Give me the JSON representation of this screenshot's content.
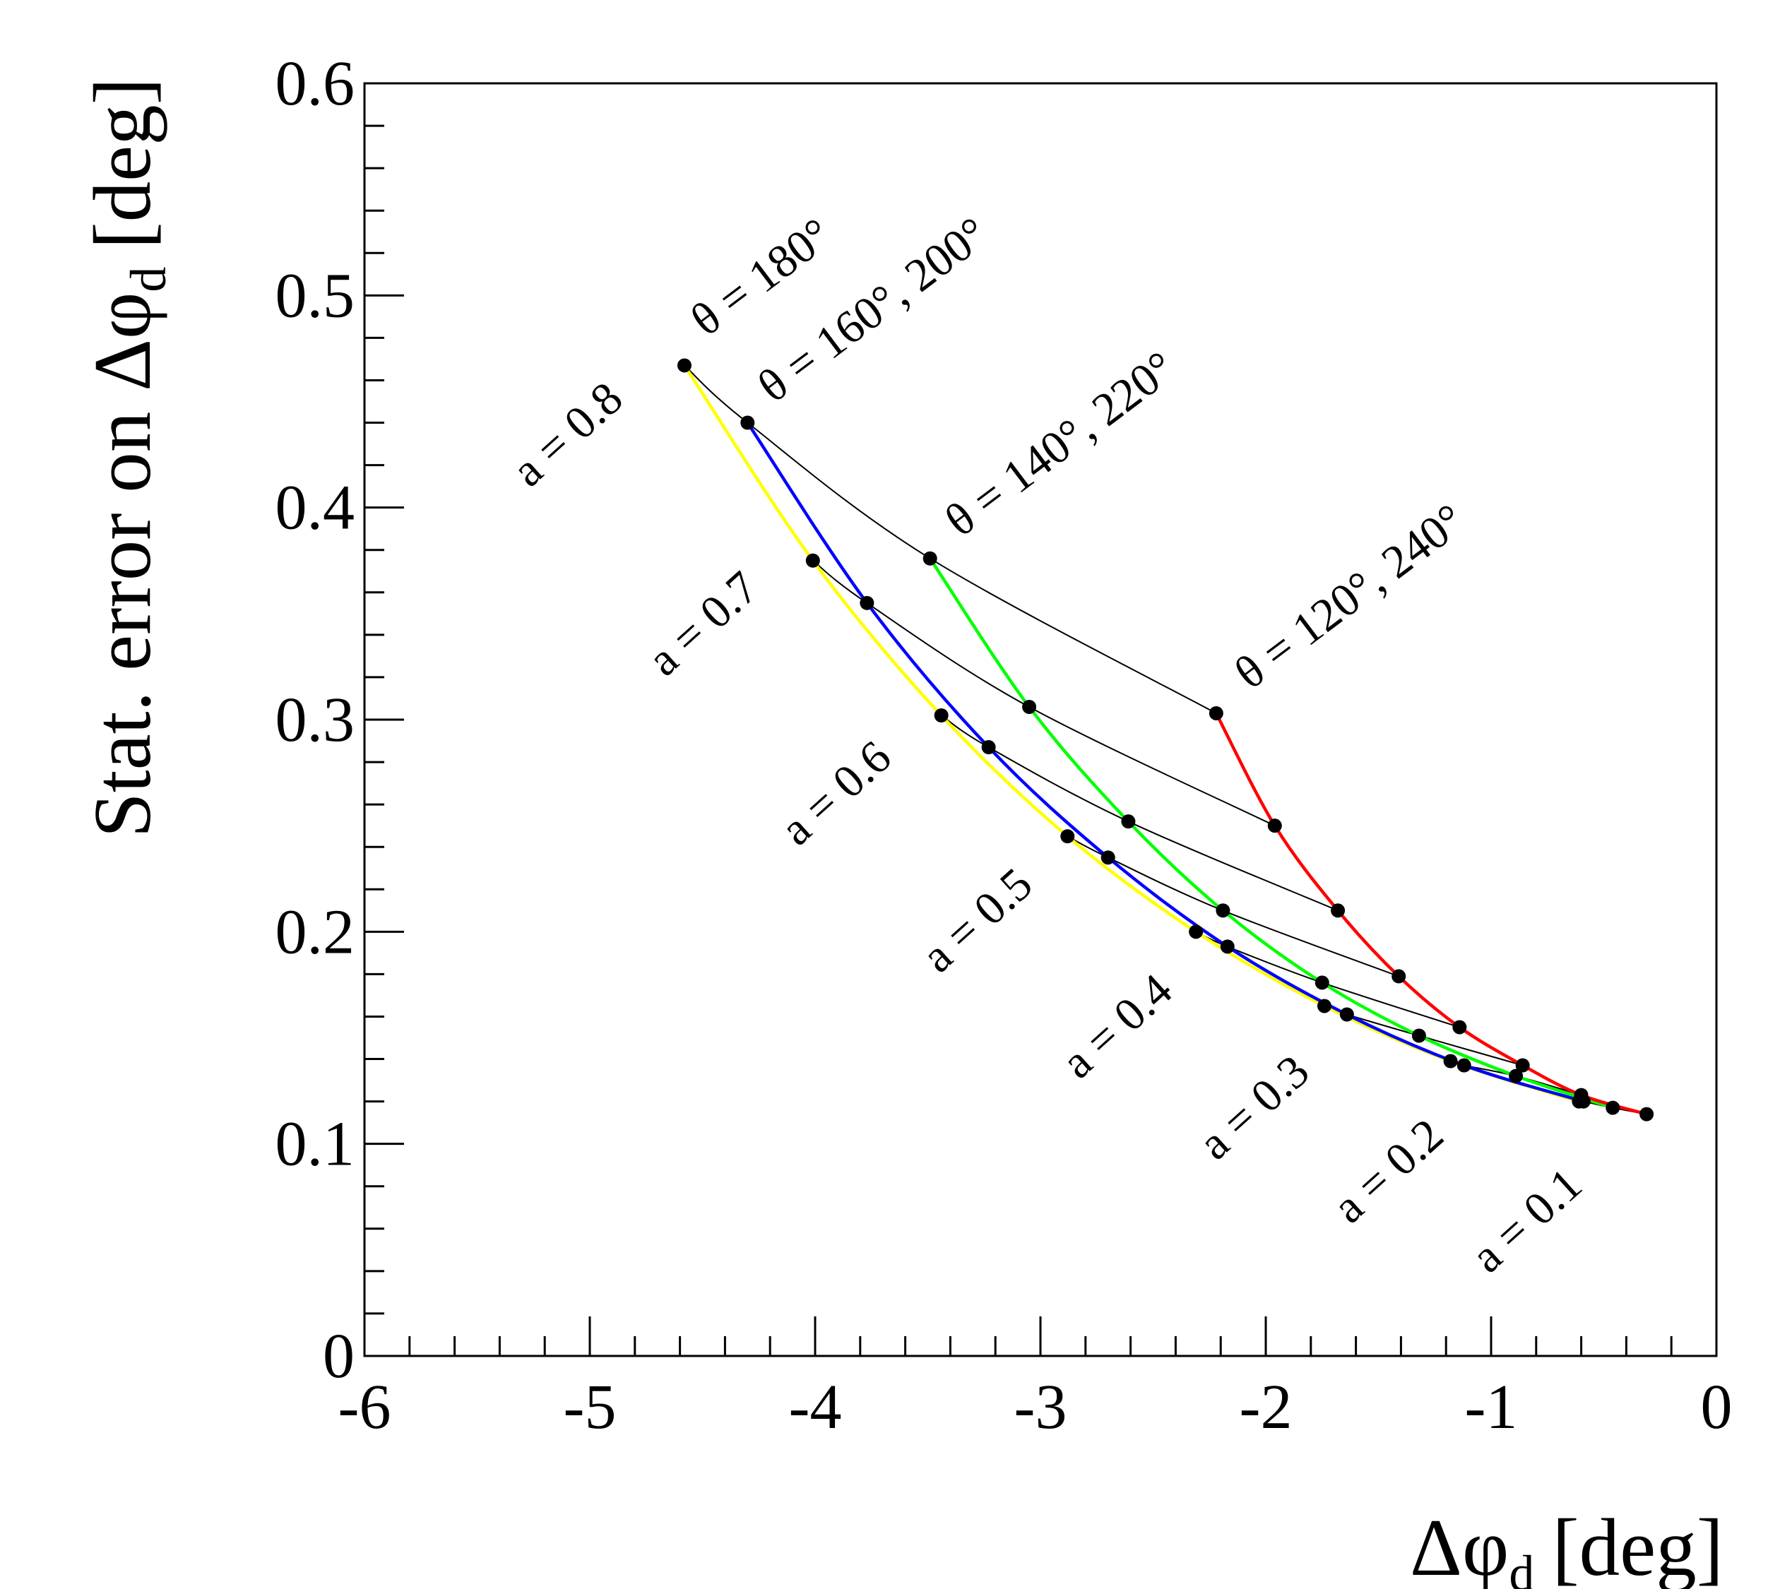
{
  "chart_data": {
    "type": "line",
    "xlabel": "Δφd [deg]",
    "xlabel_main": "Δφ",
    "xlabel_sub": "d",
    "xlabel_unit": "[deg]",
    "ylabel": "Stat. error on Δφd [deg]",
    "ylabel_main": "Stat. error on Δφ",
    "ylabel_sub": "d",
    "ylabel_unit": "[deg]",
    "xlim": [
      -6,
      0
    ],
    "ylim": [
      0,
      0.6
    ],
    "x_major_ticks": [
      -6,
      -5,
      -4,
      -3,
      -2,
      -1,
      0
    ],
    "x_tick_labels": [
      "-6",
      "-5",
      "-4",
      "-3",
      "-2",
      "-1",
      "0"
    ],
    "x_minor_step": 0.2,
    "y_major_ticks": [
      0,
      0.1,
      0.2,
      0.3,
      0.4,
      0.5,
      0.6
    ],
    "y_tick_labels": [
      "0",
      "0.1",
      "0.2",
      "0.3",
      "0.4",
      "0.5",
      "0.6"
    ],
    "y_minor_step": 0.02,
    "grid": false,
    "series": [
      {
        "name": "θ = 180°",
        "color": "#ffff00",
        "points": [
          [
            -4.58,
            0.467
          ],
          [
            -4.01,
            0.375
          ],
          [
            -3.44,
            0.302
          ],
          [
            -2.88,
            0.245
          ],
          [
            -2.31,
            0.2
          ],
          [
            -1.74,
            0.165
          ],
          [
            -1.18,
            0.139
          ],
          [
            -0.61,
            0.12
          ]
        ]
      },
      {
        "name": "θ = 160°, 200°",
        "color": "#0000ff",
        "points": [
          [
            -4.3,
            0.44
          ],
          [
            -3.77,
            0.355
          ],
          [
            -3.23,
            0.287
          ],
          [
            -2.7,
            0.235
          ],
          [
            -2.17,
            0.193
          ],
          [
            -1.64,
            0.161
          ],
          [
            -1.12,
            0.137
          ],
          [
            -0.59,
            0.12
          ]
        ]
      },
      {
        "name": "θ = 140°, 220°",
        "color": "#00ff00",
        "points": [
          [
            -3.49,
            0.376
          ],
          [
            -3.05,
            0.306
          ],
          [
            -2.61,
            0.252
          ],
          [
            -2.19,
            0.21
          ],
          [
            -1.75,
            0.176
          ],
          [
            -1.32,
            0.151
          ],
          [
            -0.89,
            0.132
          ],
          [
            -0.46,
            0.117
          ]
        ]
      },
      {
        "name": "θ = 120°, 240°",
        "color": "#ff0000",
        "points": [
          [
            -2.22,
            0.303
          ],
          [
            -1.96,
            0.25
          ],
          [
            -1.68,
            0.21
          ],
          [
            -1.41,
            0.179
          ],
          [
            -1.14,
            0.155
          ],
          [
            -0.86,
            0.137
          ],
          [
            -0.6,
            0.123
          ],
          [
            -0.31,
            0.114
          ]
        ]
      }
    ],
    "curve_color": "#000000",
    "marker_color": "#000000",
    "annotations": {
      "theta_labels": [
        "θ = 180°",
        "θ = 160°, 200°",
        "θ = 140°, 220°",
        "θ = 120°, 240°"
      ],
      "a_labels": [
        "a = 0.8",
        "a = 0.7",
        "a = 0.6",
        "a = 0.5",
        "a = 0.4",
        "a = 0.3",
        "a = 0.2",
        "a = 0.1"
      ]
    }
  }
}
